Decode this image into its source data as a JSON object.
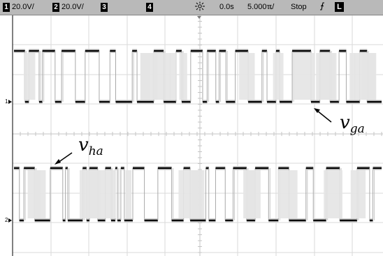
{
  "status_bar": {
    "ch1_number": "1",
    "ch1_scale": "20.0V/",
    "ch2_number": "2",
    "ch2_scale": "20.0V/",
    "ch3_number": "3",
    "ch4_number": "4",
    "acquire_icon": "sun-acquire-icon",
    "time_delay": "0.0s",
    "time_scale": "5.000ℼ/",
    "run_state": "Stop",
    "trigger_icon": "trigger-edge-icon",
    "trigger_mode": "L"
  },
  "screen": {
    "ch1_ground_marker": "1",
    "ch2_ground_marker": "2",
    "trace_top_label": {
      "main": "v",
      "sub": "ga"
    },
    "trace_bottom_label": {
      "main": "v",
      "sub": "ha"
    }
  }
}
